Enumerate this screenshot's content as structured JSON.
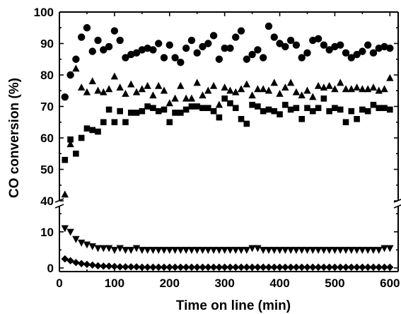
{
  "chart_data": {
    "type": "scatter",
    "xlabel": "Time on line (min)",
    "ylabel": "CO conversion (%)",
    "xlim": [
      0,
      615
    ],
    "ylim_upper": [
      40,
      100
    ],
    "ylim_lower": [
      -1,
      17
    ],
    "axis_break": true,
    "x_ticks": [
      "0",
      "100",
      "200",
      "300",
      "400",
      "500",
      "600"
    ],
    "y_ticks_upper": [
      "40",
      "50",
      "60",
      "70",
      "80",
      "90",
      "100"
    ],
    "y_ticks_lower": [
      "0",
      "10"
    ],
    "grid": false,
    "series": [
      {
        "marker": "circle",
        "points": [
          [
            10,
            73
          ],
          [
            20,
            80
          ],
          [
            30,
            85
          ],
          [
            40,
            92
          ],
          [
            50,
            95
          ],
          [
            60,
            87.5
          ],
          [
            70,
            91
          ],
          [
            80,
            88
          ],
          [
            90,
            89
          ],
          [
            100,
            94
          ],
          [
            110,
            91
          ],
          [
            120,
            85.5
          ],
          [
            130,
            86.5
          ],
          [
            140,
            87
          ],
          [
            150,
            88
          ],
          [
            160,
            88.5
          ],
          [
            170,
            88
          ],
          [
            180,
            90
          ],
          [
            190,
            85.5
          ],
          [
            200,
            89.5
          ],
          [
            210,
            85.5
          ],
          [
            220,
            84
          ],
          [
            230,
            88.5
          ],
          [
            240,
            91
          ],
          [
            250,
            87
          ],
          [
            260,
            89
          ],
          [
            270,
            90
          ],
          [
            280,
            92.5
          ],
          [
            290,
            85
          ],
          [
            300,
            88.5
          ],
          [
            310,
            88.5
          ],
          [
            320,
            92
          ],
          [
            330,
            94
          ],
          [
            340,
            85
          ],
          [
            350,
            86.5
          ],
          [
            360,
            88
          ],
          [
            370,
            85.5
          ],
          [
            380,
            95.5
          ],
          [
            390,
            92
          ],
          [
            400,
            90
          ],
          [
            410,
            89
          ],
          [
            420,
            91
          ],
          [
            430,
            89.5
          ],
          [
            440,
            85.5
          ],
          [
            450,
            87
          ],
          [
            460,
            91
          ],
          [
            470,
            91.5
          ],
          [
            480,
            89.5
          ],
          [
            490,
            88
          ],
          [
            500,
            89
          ],
          [
            510,
            89.5
          ],
          [
            520,
            87
          ],
          [
            530,
            85.5
          ],
          [
            540,
            86.5
          ],
          [
            550,
            87.5
          ],
          [
            560,
            89.5
          ],
          [
            570,
            87
          ],
          [
            580,
            88.5
          ],
          [
            590,
            89
          ],
          [
            600,
            88.5
          ]
        ]
      },
      {
        "marker": "triangle-up",
        "points": [
          [
            10,
            42
          ],
          [
            20,
            58
          ],
          [
            30,
            82
          ],
          [
            40,
            76
          ],
          [
            50,
            74.5
          ],
          [
            60,
            78
          ],
          [
            70,
            75
          ],
          [
            80,
            74.5
          ],
          [
            90,
            75.5
          ],
          [
            100,
            79.5
          ],
          [
            110,
            76
          ],
          [
            120,
            74
          ],
          [
            130,
            77
          ],
          [
            140,
            74.5
          ],
          [
            150,
            75.5
          ],
          [
            160,
            76.5
          ],
          [
            170,
            73.5
          ],
          [
            180,
            76.5
          ],
          [
            190,
            75
          ],
          [
            200,
            71
          ],
          [
            210,
            72.5
          ],
          [
            220,
            76.5
          ],
          [
            230,
            72.5
          ],
          [
            240,
            72.5
          ],
          [
            250,
            77.5
          ],
          [
            260,
            73.5
          ],
          [
            270,
            75
          ],
          [
            280,
            76.5
          ],
          [
            290,
            70.5
          ],
          [
            300,
            76
          ],
          [
            310,
            75
          ],
          [
            320,
            74.5
          ],
          [
            330,
            75.5
          ],
          [
            340,
            77
          ],
          [
            350,
            73.5
          ],
          [
            360,
            75.5
          ],
          [
            370,
            75.5
          ],
          [
            380,
            75
          ],
          [
            390,
            77.5
          ],
          [
            400,
            74
          ],
          [
            410,
            76
          ],
          [
            420,
            77.5
          ],
          [
            430,
            74.5
          ],
          [
            440,
            73.5
          ],
          [
            450,
            75
          ],
          [
            460,
            73
          ],
          [
            470,
            76.5
          ],
          [
            480,
            76
          ],
          [
            490,
            76.5
          ],
          [
            500,
            75.5
          ],
          [
            510,
            77.5
          ],
          [
            520,
            75.5
          ],
          [
            530,
            75.5
          ],
          [
            540,
            76
          ],
          [
            550,
            75.5
          ],
          [
            560,
            75.5
          ],
          [
            570,
            76
          ],
          [
            580,
            75
          ],
          [
            590,
            75.5
          ],
          [
            600,
            79
          ]
        ]
      },
      {
        "marker": "square",
        "points": [
          [
            10,
            53
          ],
          [
            20,
            59.5
          ],
          [
            30,
            55
          ],
          [
            40,
            60
          ],
          [
            50,
            63
          ],
          [
            60,
            62.5
          ],
          [
            70,
            62
          ],
          [
            80,
            65
          ],
          [
            90,
            69
          ],
          [
            100,
            65
          ],
          [
            110,
            68.5
          ],
          [
            120,
            65
          ],
          [
            130,
            68
          ],
          [
            140,
            68
          ],
          [
            150,
            68.5
          ],
          [
            160,
            70
          ],
          [
            170,
            69.5
          ],
          [
            180,
            68.5
          ],
          [
            190,
            69
          ],
          [
            200,
            65
          ],
          [
            210,
            68
          ],
          [
            220,
            68
          ],
          [
            230,
            69
          ],
          [
            240,
            70
          ],
          [
            250,
            70
          ],
          [
            260,
            69.5
          ],
          [
            270,
            69.5
          ],
          [
            280,
            68.5
          ],
          [
            290,
            66.5
          ],
          [
            300,
            72.5
          ],
          [
            310,
            71
          ],
          [
            320,
            69.5
          ],
          [
            330,
            66
          ],
          [
            340,
            64.5
          ],
          [
            350,
            70.5
          ],
          [
            360,
            70
          ],
          [
            370,
            68.5
          ],
          [
            380,
            69
          ],
          [
            390,
            68.5
          ],
          [
            400,
            67.5
          ],
          [
            410,
            70.5
          ],
          [
            420,
            69
          ],
          [
            430,
            69.5
          ],
          [
            440,
            66
          ],
          [
            450,
            69.5
          ],
          [
            460,
            68.5
          ],
          [
            470,
            69.5
          ],
          [
            480,
            72.5
          ],
          [
            490,
            68.5
          ],
          [
            500,
            69.5
          ],
          [
            510,
            69
          ],
          [
            520,
            65
          ],
          [
            530,
            68.5
          ],
          [
            540,
            66
          ],
          [
            550,
            69
          ],
          [
            560,
            68.5
          ],
          [
            570,
            70.5
          ],
          [
            580,
            69.5
          ],
          [
            590,
            69.5
          ],
          [
            600,
            69
          ]
        ]
      },
      {
        "marker": "triangle-down",
        "points": [
          [
            10,
            11
          ],
          [
            20,
            10
          ],
          [
            30,
            8
          ],
          [
            40,
            7
          ],
          [
            50,
            6.5
          ],
          [
            60,
            6
          ],
          [
            70,
            5.5
          ],
          [
            80,
            5.5
          ],
          [
            90,
            5.5
          ],
          [
            100,
            5
          ],
          [
            110,
            5.5
          ],
          [
            120,
            5
          ],
          [
            130,
            5
          ],
          [
            140,
            5.5
          ],
          [
            150,
            5
          ],
          [
            160,
            5
          ],
          [
            170,
            5
          ],
          [
            180,
            5
          ],
          [
            190,
            5
          ],
          [
            200,
            5
          ],
          [
            210,
            5
          ],
          [
            220,
            5
          ],
          [
            230,
            5
          ],
          [
            240,
            5
          ],
          [
            250,
            5
          ],
          [
            260,
            5
          ],
          [
            270,
            5
          ],
          [
            280,
            5
          ],
          [
            290,
            5
          ],
          [
            300,
            5
          ],
          [
            310,
            5
          ],
          [
            320,
            5
          ],
          [
            330,
            5
          ],
          [
            340,
            5
          ],
          [
            350,
            5.5
          ],
          [
            360,
            5.5
          ],
          [
            370,
            5
          ],
          [
            380,
            5
          ],
          [
            390,
            5
          ],
          [
            400,
            5
          ],
          [
            410,
            5
          ],
          [
            420,
            5
          ],
          [
            430,
            5
          ],
          [
            440,
            5
          ],
          [
            450,
            5
          ],
          [
            460,
            5
          ],
          [
            470,
            5
          ],
          [
            480,
            5
          ],
          [
            490,
            5
          ],
          [
            500,
            5
          ],
          [
            510,
            5
          ],
          [
            520,
            5
          ],
          [
            530,
            5
          ],
          [
            540,
            5
          ],
          [
            550,
            5
          ],
          [
            560,
            5
          ],
          [
            570,
            5
          ],
          [
            580,
            5
          ],
          [
            590,
            5.5
          ],
          [
            600,
            5.5
          ]
        ]
      },
      {
        "marker": "diamond",
        "points": [
          [
            10,
            2.5
          ],
          [
            20,
            2
          ],
          [
            30,
            1.5
          ],
          [
            40,
            1.2
          ],
          [
            50,
            1
          ],
          [
            60,
            0.8
          ],
          [
            70,
            0.6
          ],
          [
            80,
            0.5
          ],
          [
            90,
            0.5
          ],
          [
            100,
            0.4
          ],
          [
            110,
            0.3
          ],
          [
            120,
            0.3
          ],
          [
            130,
            0.3
          ],
          [
            140,
            0.3
          ],
          [
            150,
            0.2
          ],
          [
            160,
            0.2
          ],
          [
            170,
            0.2
          ],
          [
            180,
            0.2
          ],
          [
            190,
            0.2
          ],
          [
            200,
            0.2
          ],
          [
            210,
            0.2
          ],
          [
            220,
            0.2
          ],
          [
            230,
            0.2
          ],
          [
            240,
            0.2
          ],
          [
            250,
            0.2
          ],
          [
            260,
            0.2
          ],
          [
            270,
            0.2
          ],
          [
            280,
            0.2
          ],
          [
            290,
            0.2
          ],
          [
            300,
            0.2
          ],
          [
            310,
            0.2
          ],
          [
            320,
            0.2
          ],
          [
            330,
            0.2
          ],
          [
            340,
            0.2
          ],
          [
            350,
            0.2
          ],
          [
            360,
            0.2
          ],
          [
            370,
            0.2
          ],
          [
            380,
            0.2
          ],
          [
            390,
            0.2
          ],
          [
            400,
            0.2
          ],
          [
            410,
            0.2
          ],
          [
            420,
            0.2
          ],
          [
            430,
            0.2
          ],
          [
            440,
            0.2
          ],
          [
            450,
            0.2
          ],
          [
            460,
            0.2
          ],
          [
            470,
            0.2
          ],
          [
            480,
            0.2
          ],
          [
            490,
            0.2
          ],
          [
            500,
            0.2
          ],
          [
            510,
            0.2
          ],
          [
            520,
            0.2
          ],
          [
            530,
            0.2
          ],
          [
            540,
            0.2
          ],
          [
            550,
            0.2
          ],
          [
            560,
            0.2
          ],
          [
            570,
            0.2
          ],
          [
            580,
            0.2
          ],
          [
            590,
            0.2
          ],
          [
            600,
            0.2
          ]
        ]
      }
    ]
  }
}
